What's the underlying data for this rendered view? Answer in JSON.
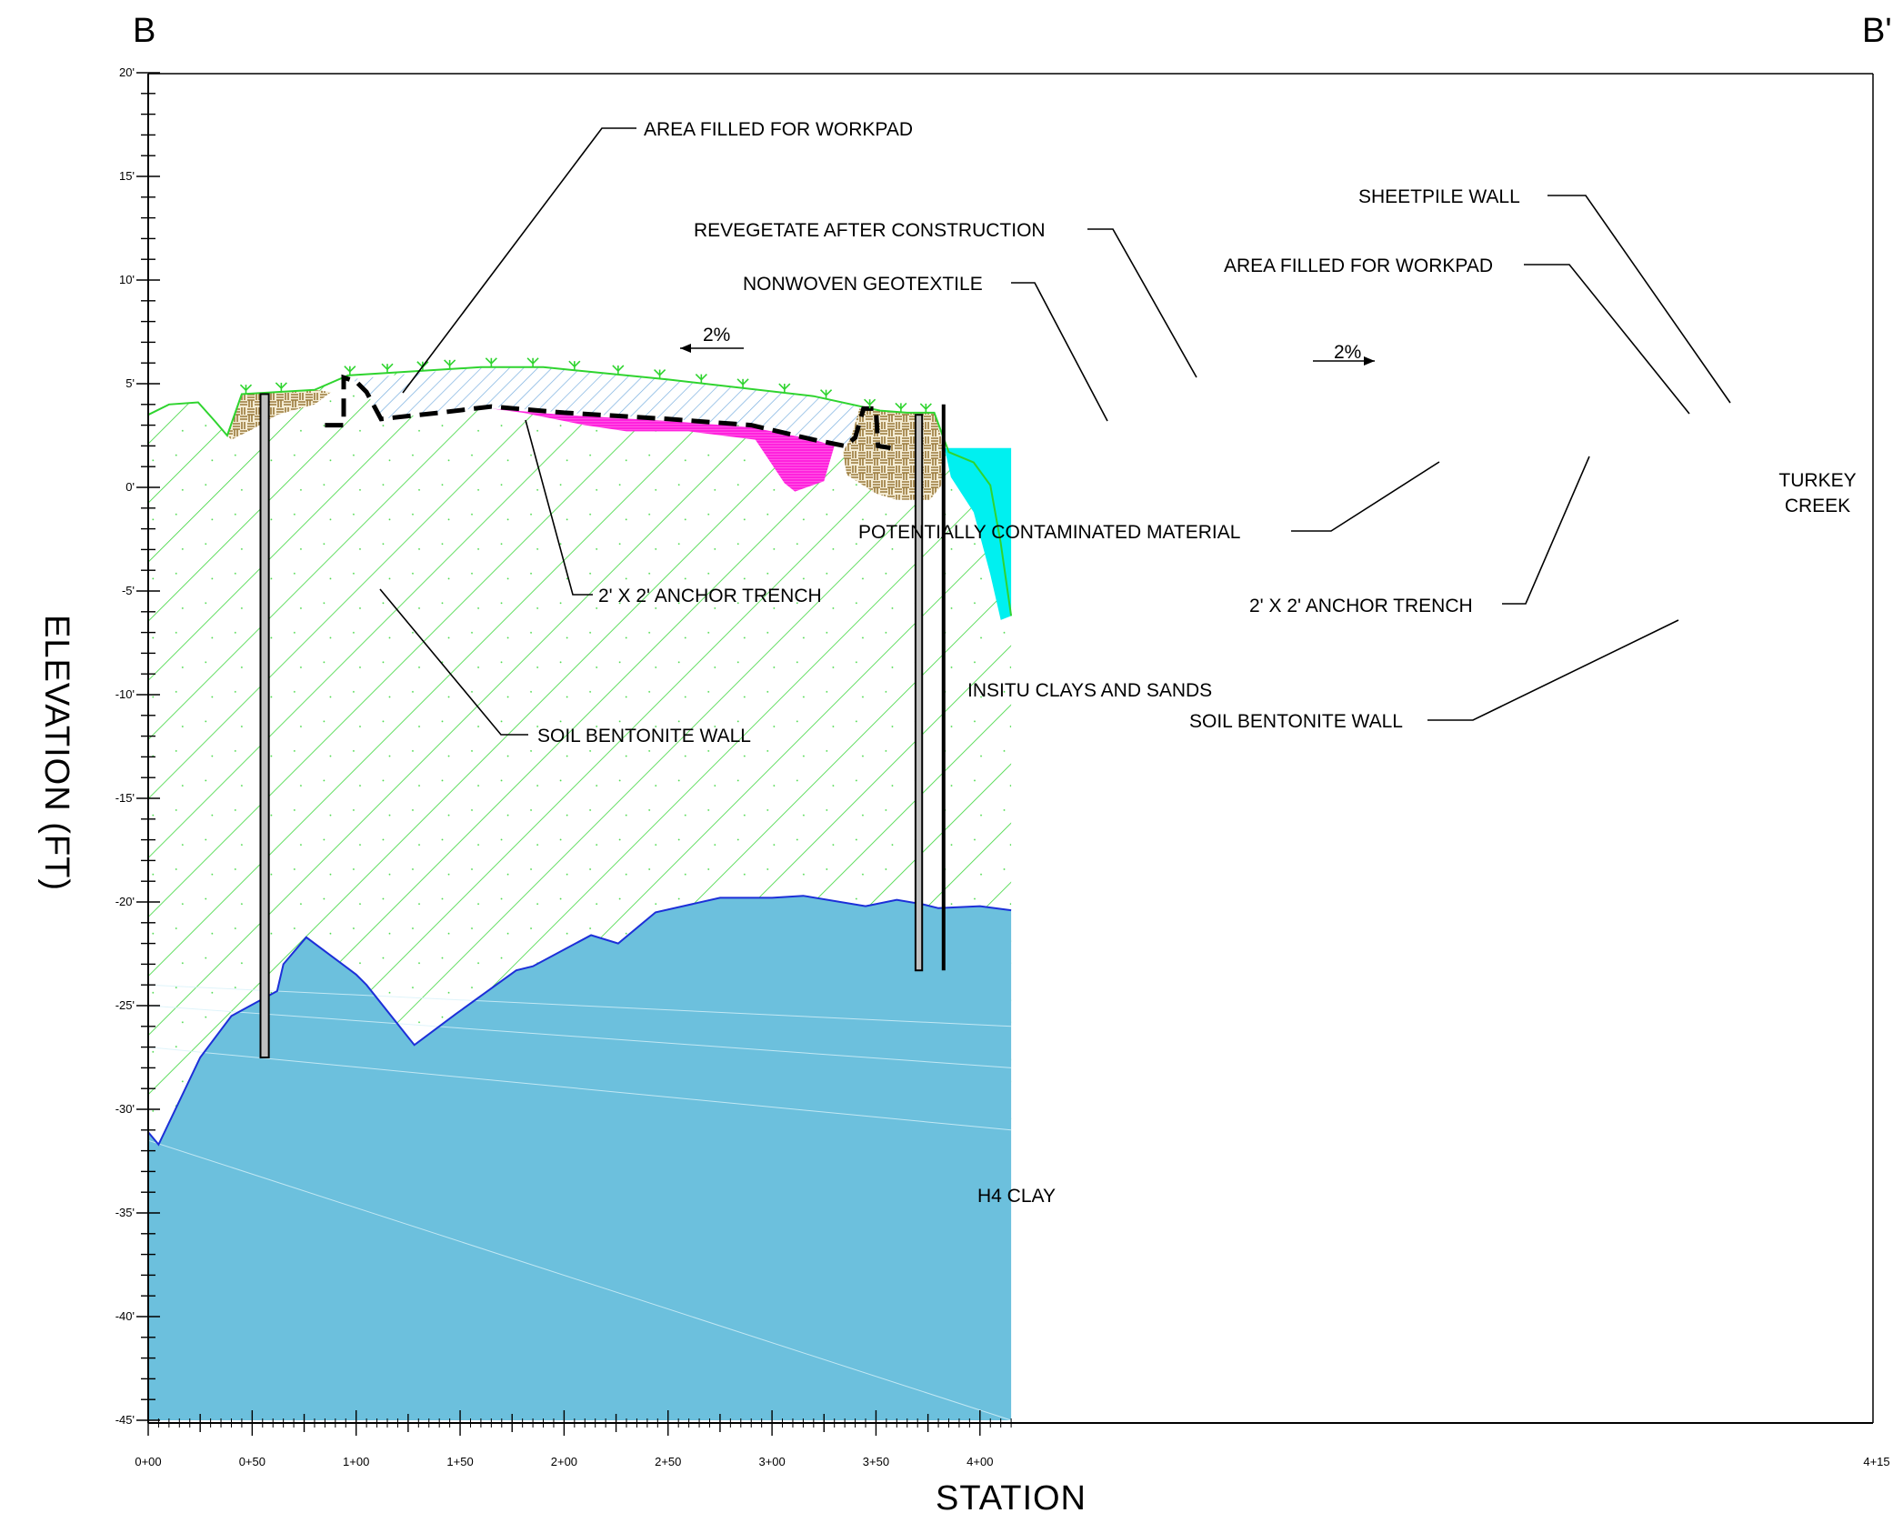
{
  "section": {
    "left_label": "B",
    "right_label": "B'"
  },
  "axes": {
    "y_title": "ELEVATION (FT)",
    "x_title": "STATION",
    "y_range": [
      -45,
      20
    ],
    "x_range": [
      0,
      415
    ],
    "y_ticks": [
      "20'",
      "15'",
      "10'",
      "5'",
      "0'",
      "-5'",
      "-10'",
      "-15'",
      "-20'",
      "-25'",
      "-30'",
      "-35'",
      "-40'",
      "-45'"
    ],
    "y_tick_values": [
      20,
      15,
      10,
      5,
      0,
      -5,
      -10,
      -15,
      -20,
      -25,
      -30,
      -35,
      -40,
      -45
    ],
    "x_ticks": [
      "0+00",
      "0+50",
      "1+00",
      "1+50",
      "2+00",
      "2+50",
      "3+00",
      "3+50",
      "4+00",
      "4+15"
    ],
    "x_tick_values": [
      0,
      50,
      100,
      150,
      200,
      250,
      300,
      350,
      400,
      415
    ]
  },
  "callouts": {
    "workpad_left": "AREA FILLED FOR WORKPAD",
    "revegetate": "REVEGETATE AFTER CONSTRUCTION",
    "geotextile": "NONWOVEN GEOTEXTILE",
    "sheetpile": "SHEETPILE WALL",
    "workpad_right": "AREA FILLED FOR WORKPAD",
    "slope_left": "2%",
    "slope_right": "2%",
    "contaminated": "POTENTIALLY CONTAMINATED MATERIAL",
    "anchor_left": "2' X 2' ANCHOR TRENCH",
    "anchor_right": "2' X 2' ANCHOR TRENCH",
    "insitu": "INSITU CLAYS AND SANDS",
    "sbw_left": "SOIL BENTONITE WALL",
    "sbw_right": "SOIL BENTONITE WALL",
    "h4clay": "H4 CLAY",
    "creek_line1": "TURKEY",
    "creek_line2": "CREEK"
  },
  "colors": {
    "insitu_hatch": "#3ed63e",
    "clay_fill": "#6cc0dd",
    "clay_line": "#1c2fd8",
    "cap_hatch": "#7ab0e0",
    "contaminated": "#ff22dd",
    "workpad": "#9a7a3c",
    "creek": "#00f0f0",
    "wall_fill": "#c0c0c0",
    "vegetation": "#2fd42f"
  }
}
